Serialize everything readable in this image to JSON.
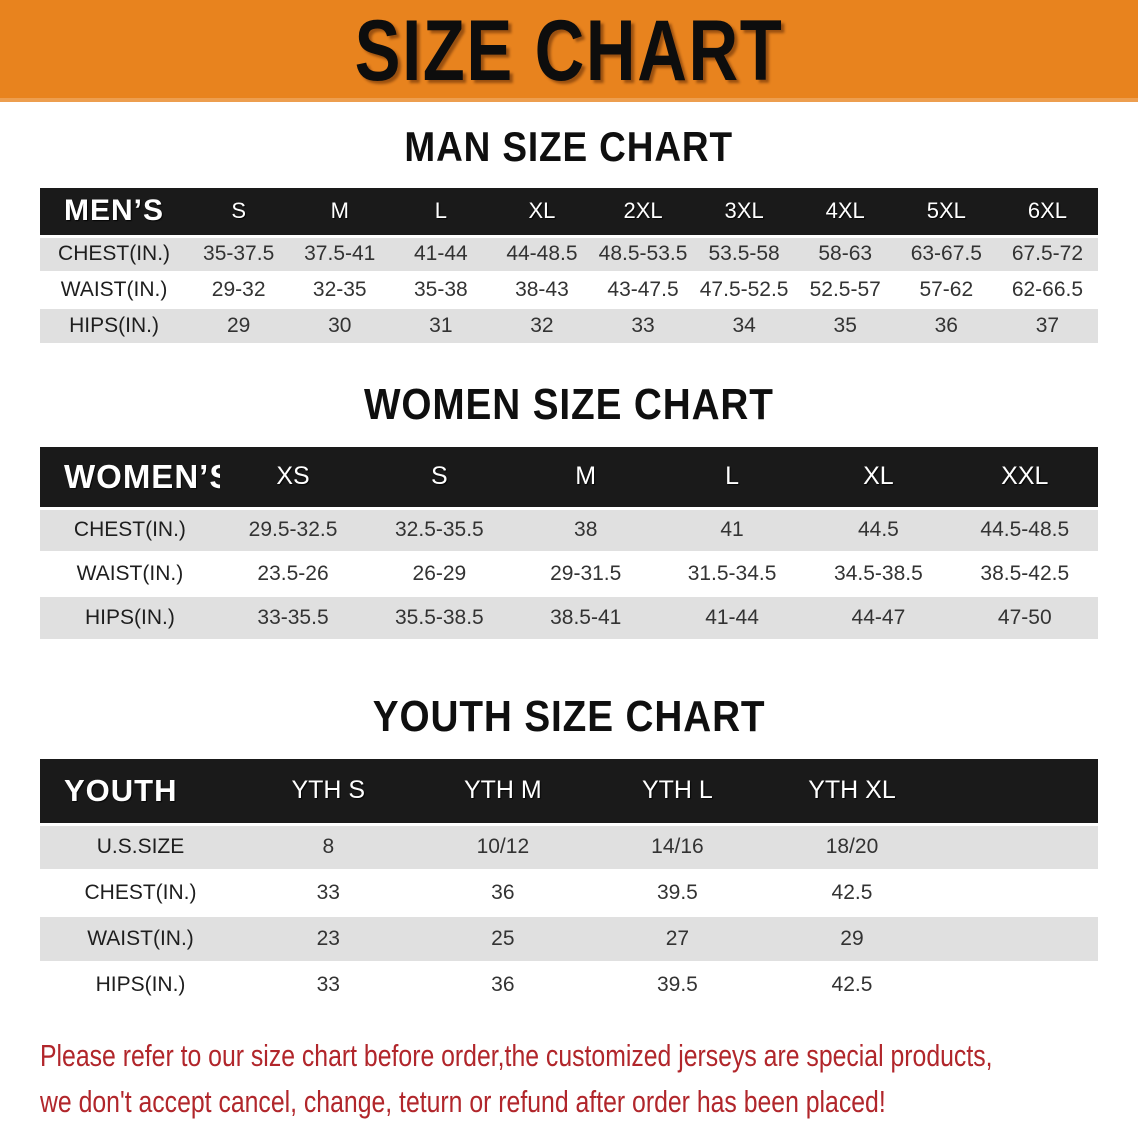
{
  "banner": {
    "title": "SIZE CHART"
  },
  "colors": {
    "banner_orange": "#E8831E",
    "header_black": "#1A1A1A",
    "row_gray": "#E0E0E0",
    "row_white": "#FFFFFF",
    "notice_red": "#B1262B"
  },
  "sections": [
    {
      "key": "man",
      "title": "MAN SIZE CHART",
      "table": {
        "header_label": "MEN’S",
        "columns": [
          "S",
          "M",
          "L",
          "XL",
          "2XL",
          "3XL",
          "4XL",
          "5XL",
          "6XL"
        ],
        "rows": [
          {
            "label": "CHEST(IN.)",
            "values": [
              "35-37.5",
              "37.5-41",
              "41-44",
              "44-48.5",
              "48.5-53.5",
              "53.5-58",
              "58-63",
              "63-67.5",
              "67.5-72"
            ]
          },
          {
            "label": "WAIST(IN.)",
            "values": [
              "29-32",
              "32-35",
              "35-38",
              "38-43",
              "43-47.5",
              "47.5-52.5",
              "52.5-57",
              "57-62",
              "62-66.5"
            ]
          },
          {
            "label": "HIPS(IN.)",
            "values": [
              "29",
              "30",
              "31",
              "32",
              "33",
              "34",
              "35",
              "36",
              "37"
            ]
          }
        ]
      }
    },
    {
      "key": "women",
      "title": "WOMEN SIZE CHART",
      "table": {
        "header_label": "WOMEN’S",
        "columns": [
          "XS",
          "S",
          "M",
          "L",
          "XL",
          "XXL"
        ],
        "rows": [
          {
            "label": "CHEST(IN.)",
            "values": [
              "29.5-32.5",
              "32.5-35.5",
              "38",
              "41",
              "44.5",
              "44.5-48.5"
            ]
          },
          {
            "label": "WAIST(IN.)",
            "values": [
              "23.5-26",
              "26-29",
              "29-31.5",
              "31.5-34.5",
              "34.5-38.5",
              "38.5-42.5"
            ]
          },
          {
            "label": "HIPS(IN.)",
            "values": [
              "33-35.5",
              "35.5-38.5",
              "38.5-41",
              "41-44",
              "44-47",
              "47-50"
            ]
          }
        ]
      }
    },
    {
      "key": "youth",
      "title": "YOUTH SIZE CHART",
      "table": {
        "header_label": "YOUTH",
        "columns": [
          "YTH S",
          "YTH M",
          "YTH L",
          "YTH XL"
        ],
        "rows": [
          {
            "label": "U.S.SIZE",
            "values": [
              "8",
              "10/12",
              "14/16",
              "18/20"
            ]
          },
          {
            "label": "CHEST(IN.)",
            "values": [
              "33",
              "36",
              "39.5",
              "42.5"
            ]
          },
          {
            "label": "WAIST(IN.)",
            "values": [
              "23",
              "25",
              "27",
              "29"
            ]
          },
          {
            "label": "HIPS(IN.)",
            "values": [
              "33",
              "36",
              "39.5",
              "42.5"
            ]
          }
        ]
      }
    }
  ],
  "footer": {
    "line1": "Please refer to our size chart before order,the customized jerseys are special products,",
    "line2": "we don't accept cancel, change, teturn or refund after order has been placed!"
  }
}
